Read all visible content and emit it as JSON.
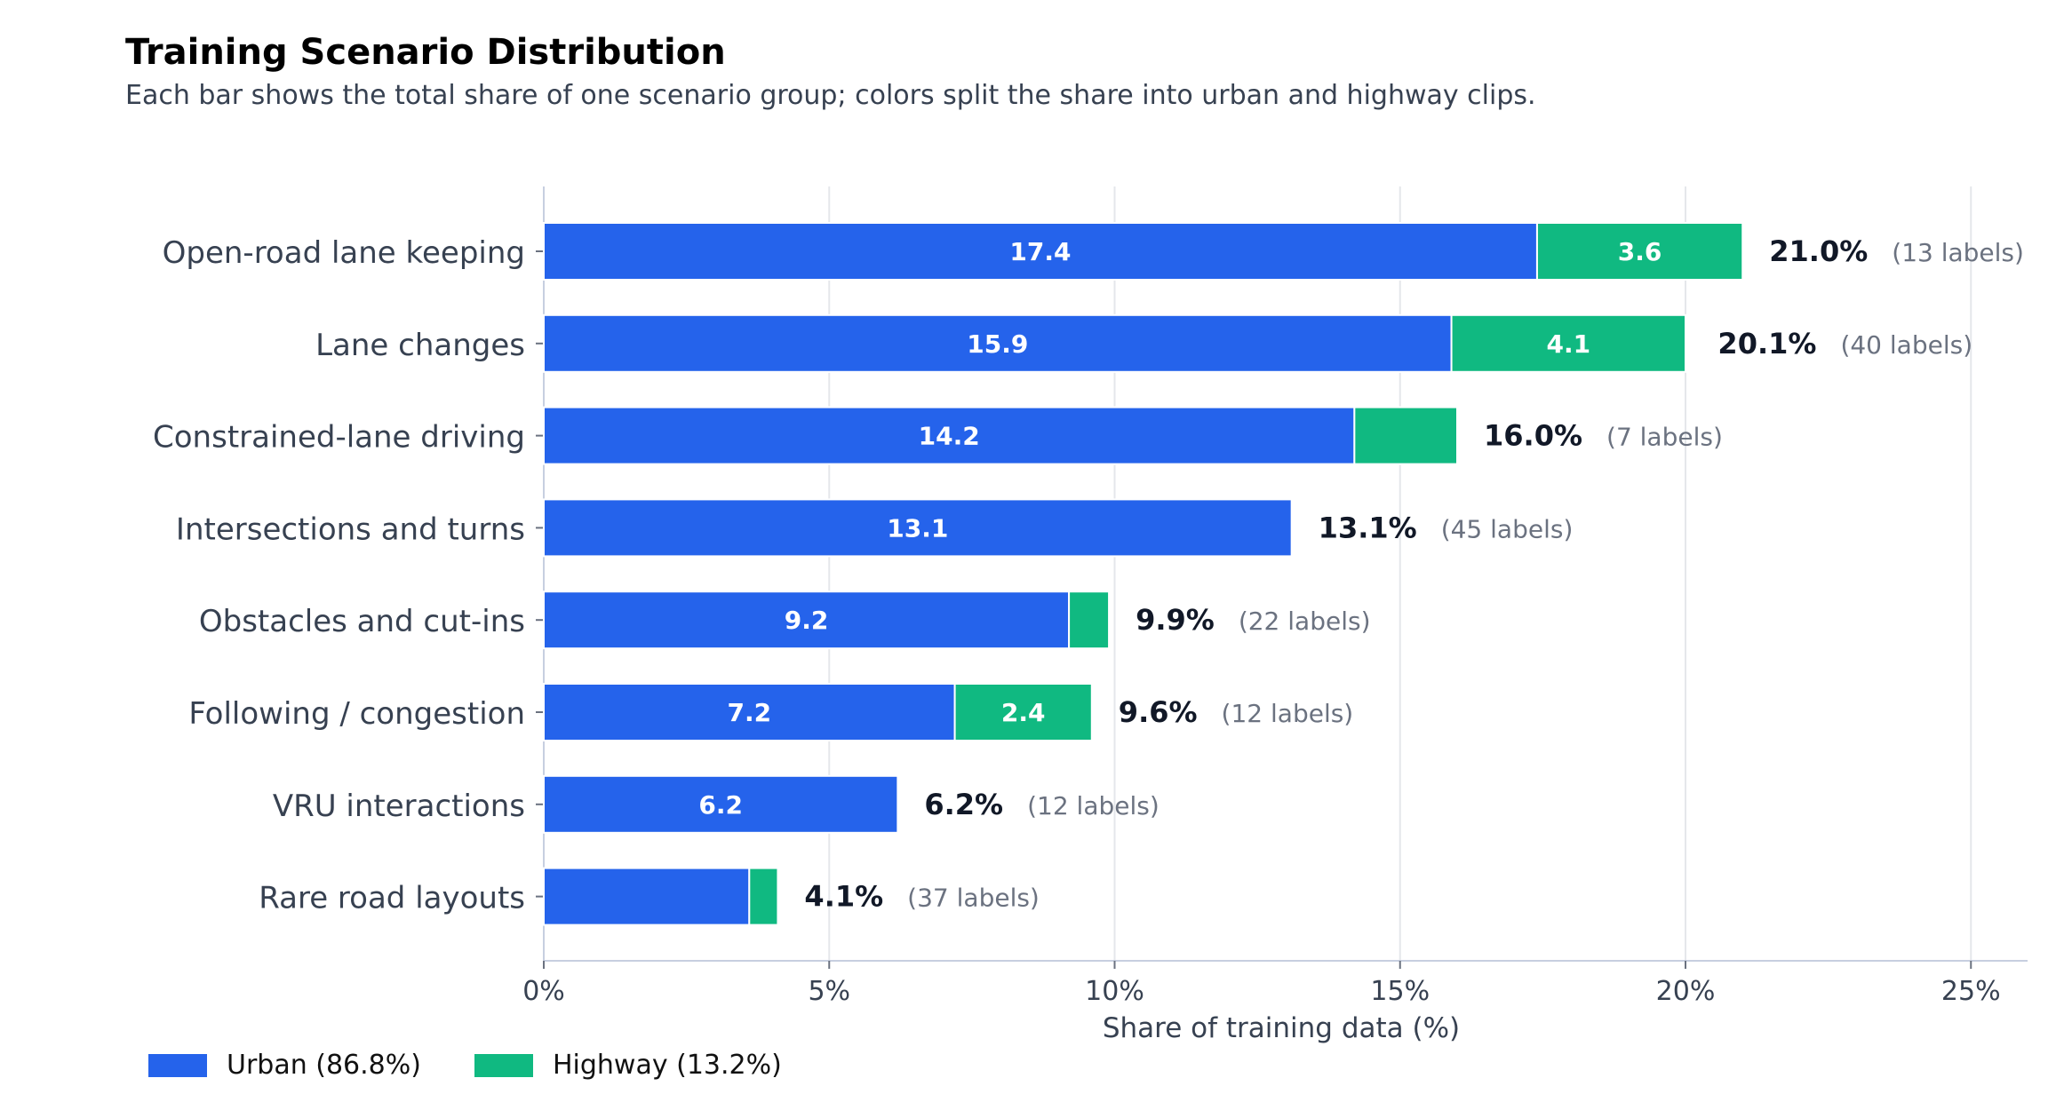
{
  "colors": {
    "urban": "#2563eb",
    "highway": "#10b981",
    "grid": "#e5e7eb",
    "axis": "#c7cfe0",
    "category_text": "#374151",
    "total_text": "#111827",
    "count_text": "#6b7280"
  },
  "chart_data": {
    "type": "bar",
    "orientation": "horizontal",
    "stacked": true,
    "title": "Training Scenario Distribution",
    "subtitle": "Each bar shows the total share of one scenario group; colors split the share into urban and highway clips.",
    "xlabel": "Share of training data (%)",
    "ylabel": "",
    "xlim": [
      0,
      26
    ],
    "xticks": [
      0,
      5,
      10,
      15,
      20,
      25
    ],
    "xtick_labels": [
      "0%",
      "5%",
      "10%",
      "15%",
      "20%",
      "25%"
    ],
    "grid": "vertical",
    "legend_position": "bottom-left",
    "categories": [
      "Open-road lane keeping",
      "Lane changes",
      "Constrained-lane driving",
      "Intersections and turns",
      "Obstacles and cut-ins",
      "Following / congestion",
      "VRU interactions",
      "Rare road layouts"
    ],
    "series": [
      {
        "name": "Urban (86.8%)",
        "color": "#2563eb",
        "values": [
          17.4,
          15.9,
          14.2,
          13.1,
          9.2,
          7.2,
          6.2,
          3.6
        ],
        "labels": [
          "17.4",
          "15.9",
          "14.2",
          "13.1",
          "9.2",
          "7.2",
          "6.2",
          ""
        ]
      },
      {
        "name": "Highway (13.2%)",
        "color": "#10b981",
        "values": [
          3.6,
          4.1,
          1.8,
          0.0,
          0.7,
          2.4,
          0.0,
          0.5
        ],
        "labels": [
          "3.6",
          "4.1",
          "",
          "",
          "",
          "2.4",
          "",
          ""
        ]
      }
    ],
    "totals": [
      "21.0%",
      "20.1%",
      "16.0%",
      "13.1%",
      "9.9%",
      "9.6%",
      "6.2%",
      "4.1%"
    ],
    "total_values": [
      21.0,
      20.1,
      16.0,
      13.1,
      9.9,
      9.6,
      6.2,
      4.1
    ],
    "label_counts": [
      "(13 labels)",
      "(40 labels)",
      "(7 labels)",
      "(45 labels)",
      "(22 labels)",
      "(12 labels)",
      "(12 labels)",
      "(37 labels)"
    ]
  }
}
